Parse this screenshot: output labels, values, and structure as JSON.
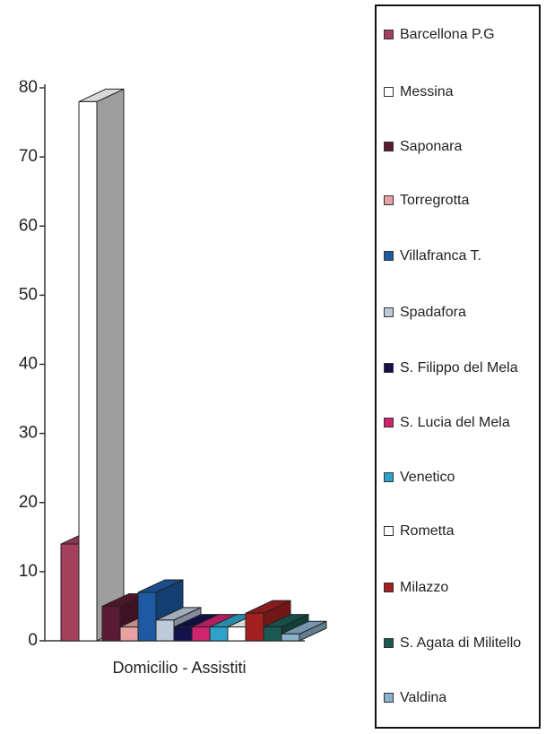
{
  "chart_data": {
    "type": "bar3d",
    "categories": [
      "Domicilio - Assistiti"
    ],
    "ylim": [
      0,
      80
    ],
    "yticks": [
      0,
      10,
      20,
      30,
      40,
      50,
      60,
      70,
      80
    ],
    "series": [
      {
        "name": "Barcellona P.G",
        "color": "#a3405c",
        "values": [
          14
        ]
      },
      {
        "name": "Messina",
        "color": "#ffffff",
        "values": [
          78
        ]
      },
      {
        "name": "Saponara",
        "color": "#5a1a32",
        "values": [
          5
        ]
      },
      {
        "name": "Torregrotta",
        "color": "#e8a2a2",
        "values": [
          2
        ]
      },
      {
        "name": "Villafranca T.",
        "color": "#1d5aa3",
        "values": [
          7
        ]
      },
      {
        "name": "Spadafora",
        "color": "#bccadb",
        "values": [
          3
        ]
      },
      {
        "name": "S. Filippo del Mela",
        "color": "#14124a",
        "values": [
          2
        ]
      },
      {
        "name": "S. Lucia del Mela",
        "color": "#d0246f",
        "values": [
          2
        ]
      },
      {
        "name": "Venetico",
        "color": "#2fa2cc",
        "values": [
          2
        ]
      },
      {
        "name": "Rometta",
        "color": "#ffffff",
        "values": [
          2
        ]
      },
      {
        "name": "Milazzo",
        "color": "#a32020",
        "values": [
          4
        ]
      },
      {
        "name": "S. Agata di Militello",
        "color": "#1a5a52",
        "values": [
          2
        ]
      },
      {
        "name": "Valdina",
        "color": "#8ab2cc",
        "values": [
          1
        ]
      }
    ]
  }
}
